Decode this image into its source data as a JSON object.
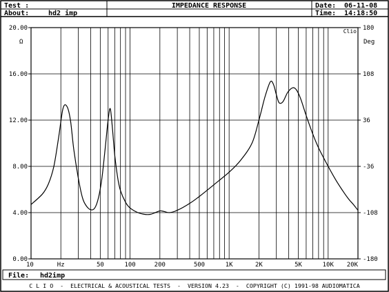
{
  "header": {
    "test_label": "Test :",
    "about_label": "About:",
    "about_value": "hd2 imp",
    "title": "IMPEDANCE RESPONSE",
    "date_label": "Date:",
    "date_value": "06-11-08",
    "time_label": "Time:",
    "time_value": "14:18:50"
  },
  "footer": {
    "file_label": "File:",
    "file_value": "hd2imp",
    "credits": "C L I O  -  ELECTRICAL & ACOUSTICAL TESTS  -  VERSION 4.23  -  COPYRIGHT (C) 1991-98 AUDIOMATICA"
  },
  "chart_data": {
    "type": "line",
    "xscale": "log",
    "xlim": [
      10,
      20000
    ],
    "ylim": [
      0,
      20
    ],
    "y2lim": [
      -180,
      180
    ],
    "ylabel": "Ω",
    "y2label": "Deg",
    "corner_label": "Clio",
    "grid": true,
    "xtick_labels": [
      {
        "value": 10,
        "label": "10"
      },
      {
        "value": 20,
        "label": "Hz"
      },
      {
        "value": 50,
        "label": "50"
      },
      {
        "value": 100,
        "label": "100"
      },
      {
        "value": 200,
        "label": "200"
      },
      {
        "value": 500,
        "label": "500"
      },
      {
        "value": 1000,
        "label": "1K"
      },
      {
        "value": 2000,
        "label": "2K"
      },
      {
        "value": 5000,
        "label": "5K"
      },
      {
        "value": 10000,
        "label": "10K"
      },
      {
        "value": 20000,
        "label": "20K"
      }
    ],
    "ytick_labels": [
      "0.00",
      "4.00",
      "8.00",
      "12.00",
      "16.00",
      "20.00"
    ],
    "y2tick_labels": [
      "-180",
      "-108",
      "-36",
      "36",
      "108",
      "180"
    ],
    "series": [
      {
        "x": [
          10,
          13,
          15,
          17,
          19,
          21,
          23,
          25,
          27,
          30,
          33,
          36,
          40,
          44,
          48,
          52,
          56,
          60,
          63,
          66,
          70,
          75,
          80,
          90,
          100,
          120,
          140,
          160,
          180,
          200,
          220,
          250,
          300,
          400,
          500,
          700,
          1000,
          1300,
          1700,
          2000,
          2300,
          2600,
          2800,
          3000,
          3200,
          3500,
          3900,
          4400,
          4800,
          5300,
          6000,
          7000,
          8000,
          10000,
          12000,
          14000,
          16000,
          18000,
          20000
        ],
        "y": [
          4.7,
          5.6,
          6.5,
          8.0,
          10.5,
          13.0,
          13.2,
          12.0,
          9.5,
          7.0,
          5.3,
          4.6,
          4.25,
          4.4,
          5.3,
          7.0,
          9.5,
          12.0,
          13.0,
          11.5,
          9.0,
          7.0,
          5.9,
          4.9,
          4.4,
          4.0,
          3.85,
          3.85,
          4.0,
          4.15,
          4.1,
          4.0,
          4.2,
          4.8,
          5.4,
          6.4,
          7.5,
          8.5,
          10.0,
          12.0,
          14.0,
          15.3,
          15.1,
          14.2,
          13.5,
          13.6,
          14.4,
          14.8,
          14.6,
          13.8,
          12.4,
          10.8,
          9.6,
          8.0,
          6.8,
          5.9,
          5.2,
          4.7,
          4.2
        ]
      }
    ]
  }
}
